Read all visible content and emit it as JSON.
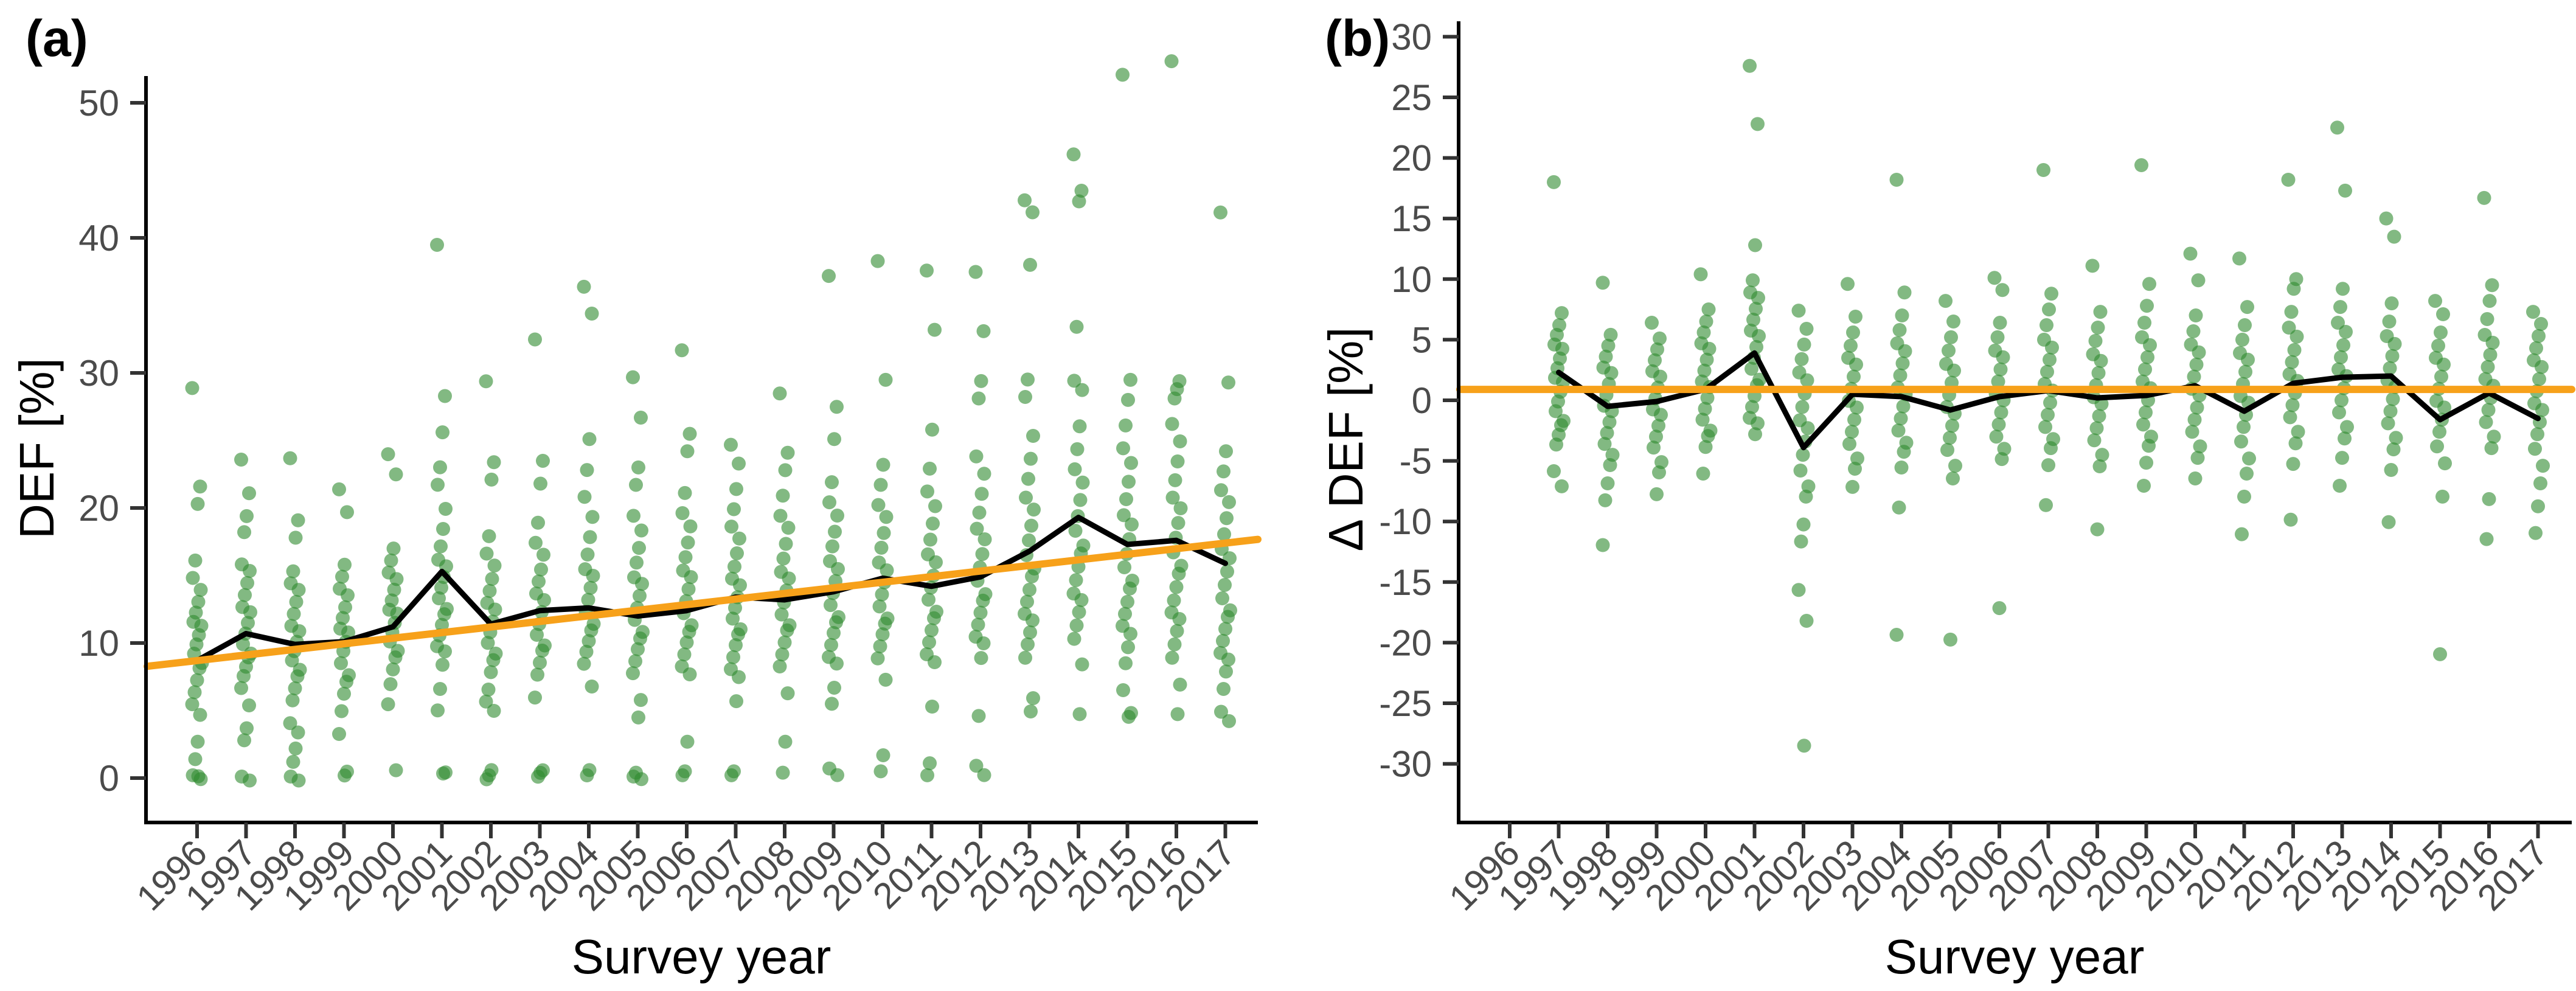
{
  "figure": {
    "description": "Two-panel scatter figure of deadwood/DEF share by survey year",
    "colors": {
      "dot": "#2f8a2f",
      "mean_line": "#000000",
      "trend_line": "#f7a11a",
      "axis": "#000000",
      "tick_text": "#4b4b4b"
    }
  },
  "chart_data": [
    {
      "type": "scatter",
      "panel_label": "(a)",
      "xlabel": "Survey year",
      "ylabel": "DEF [%]",
      "x_tick_labels": [
        "1996",
        "1997",
        "1998",
        "1999",
        "2000",
        "2001",
        "2002",
        "2003",
        "2004",
        "2005",
        "2006",
        "2007",
        "2008",
        "2009",
        "2010",
        "2011",
        "2012",
        "2013",
        "2014",
        "2015",
        "2016",
        "2017"
      ],
      "y_ticks": [
        0,
        10,
        20,
        30,
        40,
        50
      ],
      "ylim": [
        -3,
        54
      ],
      "legend": "none",
      "grid": "off",
      "years": [
        1996,
        1997,
        1998,
        1999,
        2000,
        2001,
        2002,
        2003,
        2004,
        2005,
        2006,
        2007,
        2008,
        2009,
        2010,
        2011,
        2012,
        2013,
        2014,
        2015,
        2016,
        2017
      ],
      "points_by_year": {
        "1996": [
          28.7,
          21.5,
          20.3,
          16.2,
          15.0,
          13.8,
          13.0,
          12.3,
          11.7,
          11.1,
          10.5,
          9.9,
          9.3,
          8.7,
          8.0,
          7.2,
          6.4,
          5.6,
          4.5,
          2.6,
          1.4,
          0.3,
          0.1,
          0.0
        ],
        "1997": [
          23.4,
          21.0,
          19.4,
          18.3,
          16.0,
          15.2,
          14.4,
          13.6,
          12.8,
          12.1,
          11.4,
          10.7,
          10.0,
          9.4,
          8.8,
          8.2,
          7.6,
          6.8,
          5.2,
          3.6,
          2.8,
          0.2,
          0.0
        ],
        "1998": [
          23.5,
          19.0,
          17.8,
          15.4,
          14.6,
          13.8,
          13.0,
          12.2,
          11.4,
          10.7,
          10.0,
          9.4,
          8.8,
          8.2,
          7.4,
          6.6,
          5.8,
          4.2,
          3.2,
          2.1,
          1.2,
          0.2,
          0.0
        ],
        "1999": [
          21.2,
          19.6,
          15.8,
          15.0,
          14.2,
          13.4,
          12.6,
          11.9,
          11.2,
          10.6,
          10.0,
          9.4,
          8.6,
          7.8,
          7.0,
          6.2,
          5.0,
          3.4,
          0.3,
          0.1
        ],
        "2000": [
          23.8,
          22.4,
          17.0,
          16.2,
          15.4,
          14.6,
          13.9,
          13.2,
          12.6,
          12.0,
          11.4,
          10.8,
          10.2,
          9.6,
          8.8,
          8.0,
          7.0,
          5.6,
          0.4
        ],
        "2001": [
          39.3,
          28.2,
          25.6,
          23.1,
          21.9,
          19.8,
          18.4,
          17.2,
          16.3,
          15.5,
          14.8,
          14.1,
          13.4,
          12.7,
          12.0,
          11.3,
          10.6,
          9.9,
          9.2,
          8.3,
          6.6,
          5.1,
          0.6,
          0.2
        ],
        "2002": [
          29.2,
          23.3,
          22.1,
          18.0,
          16.8,
          15.6,
          14.7,
          13.9,
          13.1,
          12.3,
          11.5,
          10.8,
          10.1,
          9.4,
          8.6,
          7.8,
          6.6,
          5.8,
          4.8,
          0.5,
          0.2,
          0.0
        ],
        "2003": [
          32.3,
          23.4,
          21.8,
          19.0,
          17.6,
          16.4,
          15.4,
          14.6,
          13.8,
          13.0,
          12.2,
          11.4,
          10.7,
          10.0,
          9.3,
          8.5,
          7.7,
          6.1,
          0.4,
          0.3,
          0.1
        ],
        "2004": [
          36.2,
          34.3,
          25.1,
          22.9,
          21.0,
          19.2,
          17.8,
          16.6,
          15.6,
          14.8,
          14.0,
          13.2,
          12.4,
          11.6,
          10.8,
          10.1,
          9.4,
          8.6,
          6.6,
          0.5,
          0.2
        ],
        "2005": [
          29.5,
          26.6,
          23.0,
          21.8,
          19.6,
          18.2,
          17.0,
          16.0,
          15.0,
          14.2,
          13.4,
          12.6,
          11.8,
          11.0,
          10.2,
          9.5,
          8.7,
          7.9,
          5.6,
          4.4,
          0.4,
          0.2,
          0.1
        ],
        "2006": [
          31.5,
          25.4,
          24.2,
          21.2,
          19.8,
          18.5,
          17.4,
          16.4,
          15.5,
          14.7,
          13.9,
          13.1,
          12.3,
          11.5,
          10.7,
          10.0,
          9.2,
          8.4,
          7.5,
          2.6,
          0.5,
          0.3
        ],
        "2007": [
          24.5,
          23.2,
          21.4,
          20.0,
          18.8,
          17.6,
          16.6,
          15.7,
          14.9,
          14.1,
          13.3,
          12.6,
          11.9,
          11.2,
          10.5,
          9.8,
          9.0,
          8.2,
          7.3,
          5.6,
          0.5,
          0.3
        ],
        "2008": [
          28.3,
          24.0,
          22.8,
          21.0,
          19.6,
          18.4,
          17.3,
          16.3,
          15.4,
          14.6,
          13.8,
          13.0,
          12.2,
          11.5,
          10.8,
          10.0,
          9.2,
          8.4,
          6.1,
          2.6,
          0.4
        ],
        "2009": [
          37.0,
          27.4,
          25.1,
          22.0,
          20.6,
          19.3,
          18.2,
          17.2,
          16.2,
          15.3,
          14.5,
          13.7,
          12.9,
          12.1,
          11.4,
          10.7,
          9.9,
          9.1,
          8.3,
          6.6,
          5.5,
          0.8,
          0.4
        ],
        "2010": [
          38.1,
          29.4,
          23.2,
          21.8,
          20.4,
          19.2,
          18.1,
          17.1,
          16.1,
          15.2,
          14.4,
          13.6,
          12.8,
          12.0,
          11.3,
          10.6,
          9.8,
          9.0,
          7.1,
          1.6,
          0.5
        ],
        "2011": [
          37.4,
          33.1,
          25.8,
          23.0,
          21.4,
          20.0,
          18.8,
          17.7,
          16.7,
          15.8,
          14.9,
          14.1,
          13.3,
          12.5,
          11.7,
          10.9,
          10.1,
          9.3,
          8.4,
          5.2,
          1.1,
          0.3
        ],
        "2012": [
          37.3,
          33.0,
          29.4,
          28.2,
          24.0,
          22.4,
          21.0,
          19.7,
          18.6,
          17.5,
          16.5,
          15.6,
          14.7,
          13.8,
          13.0,
          12.2,
          11.4,
          10.6,
          9.8,
          8.8,
          4.6,
          1.0,
          0.4
        ],
        "2013": [
          42.6,
          41.8,
          38.0,
          29.6,
          28.4,
          25.2,
          23.6,
          22.2,
          20.9,
          19.7,
          18.6,
          17.6,
          16.6,
          15.7,
          14.8,
          13.9,
          13.1,
          12.3,
          11.5,
          10.7,
          9.9,
          9.0,
          6.1,
          4.8
        ],
        "2014": [
          46.0,
          43.4,
          42.7,
          33.5,
          29.6,
          28.6,
          26.0,
          24.4,
          23.0,
          21.7,
          20.5,
          19.4,
          18.4,
          17.4,
          16.5,
          15.6,
          14.7,
          13.8,
          13.0,
          12.2,
          11.3,
          10.4,
          8.6,
          4.6
        ],
        "2015": [
          51.9,
          29.4,
          28.0,
          26.2,
          24.6,
          23.2,
          21.9,
          20.7,
          19.6,
          18.6,
          17.6,
          16.6,
          15.7,
          14.8,
          13.9,
          13.0,
          12.2,
          11.4,
          10.5,
          9.6,
          8.5,
          6.6,
          5.0,
          4.4
        ],
        "2016": [
          52.9,
          29.3,
          28.8,
          28.2,
          26.4,
          24.8,
          23.4,
          22.1,
          20.9,
          19.8,
          18.8,
          17.8,
          16.8,
          15.9,
          15.0,
          14.1,
          13.2,
          12.4,
          11.6,
          10.8,
          9.9,
          9.0,
          7.1,
          4.6
        ],
        "2017": [
          41.7,
          29.2,
          24.2,
          22.8,
          21.5,
          20.3,
          19.2,
          18.1,
          17.1,
          16.1,
          15.2,
          14.3,
          13.4,
          12.6,
          11.8,
          11.0,
          10.2,
          9.4,
          8.6,
          7.8,
          6.6,
          5.0,
          4.4
        ]
      },
      "mean_by_year": [
        8.7,
        10.7,
        9.9,
        10.1,
        11.2,
        15.3,
        11.4,
        12.4,
        12.6,
        12.0,
        12.4,
        13.4,
        13.2,
        13.8,
        14.8,
        14.2,
        14.9,
        16.8,
        19.3,
        17.3,
        17.6,
        15.9
      ],
      "trend": {
        "value_at_1996": 8.7,
        "value_at_2017": 17.4
      }
    },
    {
      "type": "scatter",
      "panel_label": "(b)",
      "xlabel": "Survey year",
      "ylabel": "Δ DEF [%]",
      "x_tick_labels": [
        "1996",
        "1997",
        "1998",
        "1999",
        "2000",
        "2001",
        "2002",
        "2003",
        "2004",
        "2005",
        "2006",
        "2007",
        "2008",
        "2009",
        "2010",
        "2011",
        "2012",
        "2013",
        "2014",
        "2015",
        "2016",
        "2017"
      ],
      "y_ticks": [
        -30,
        -25,
        -20,
        -15,
        -10,
        -5,
        0,
        5,
        10,
        15,
        20,
        25,
        30
      ],
      "ylim": [
        -33,
        32
      ],
      "legend": "none",
      "grid": "off",
      "years": [
        1996,
        1997,
        1998,
        1999,
        2000,
        2001,
        2002,
        2003,
        2004,
        2005,
        2006,
        2007,
        2008,
        2009,
        2010,
        2011,
        2012,
        2013,
        2014,
        2015,
        2016,
        2017
      ],
      "points_by_year": {
        "1997": [
          17.8,
          7.1,
          6.2,
          5.5,
          4.8,
          4.1,
          3.4,
          2.7,
          2.0,
          1.3,
          0.6,
          -0.1,
          -0.8,
          -1.5,
          -2.2,
          -2.9,
          -3.6,
          -5.7,
          -7.3
        ],
        "1998": [
          9.5,
          5.3,
          4.5,
          3.7,
          2.9,
          2.1,
          1.3,
          0.5,
          -0.3,
          -1.1,
          -1.9,
          -2.7,
          -3.5,
          -4.3,
          -5.5,
          -6.9,
          -8.2,
          -11.8
        ],
        "1999": [
          6.2,
          5.0,
          4.2,
          3.4,
          2.6,
          1.8,
          1.0,
          0.2,
          -0.6,
          -1.4,
          -2.2,
          -3.0,
          -3.8,
          -4.9,
          -6.1,
          -7.8
        ],
        "2000": [
          10.2,
          7.4,
          6.5,
          5.7,
          4.9,
          4.1,
          3.3,
          2.5,
          1.7,
          0.9,
          0.1,
          -0.7,
          -1.5,
          -2.3,
          -3.1,
          -3.9,
          -6.0
        ],
        "2001": [
          27.4,
          22.7,
          12.8,
          10.0,
          9.1,
          8.3,
          7.5,
          6.7,
          5.9,
          5.1,
          4.3,
          3.5,
          2.7,
          1.9,
          1.1,
          0.3,
          -0.5,
          -1.3,
          -2.1,
          -2.9
        ],
        "2002": [
          7.2,
          5.8,
          4.6,
          3.5,
          2.5,
          1.5,
          0.5,
          -0.5,
          -1.5,
          -2.5,
          -3.5,
          -4.5,
          -5.7,
          -6.9,
          -8.1,
          -10.3,
          -11.6,
          -15.5,
          -18.4,
          -28.6
        ],
        "2003": [
          9.4,
          6.8,
          5.6,
          4.6,
          3.7,
          2.8,
          1.9,
          1.0,
          0.1,
          -0.8,
          -1.7,
          -2.6,
          -3.5,
          -4.6,
          -5.8,
          -7.2
        ],
        "2004": [
          18.0,
          8.8,
          7.0,
          5.9,
          4.9,
          3.9,
          3.0,
          2.1,
          1.2,
          0.3,
          -0.6,
          -1.5,
          -2.4,
          -3.3,
          -4.4,
          -5.6,
          -8.8,
          -19.2
        ],
        "2005": [
          8.0,
          6.4,
          5.2,
          4.2,
          3.2,
          2.3,
          1.4,
          0.5,
          -0.4,
          -1.3,
          -2.2,
          -3.1,
          -4.0,
          -5.2,
          -6.6,
          -19.8
        ],
        "2006": [
          9.9,
          9.0,
          6.4,
          5.3,
          4.3,
          3.4,
          2.5,
          1.6,
          0.7,
          -0.2,
          -1.1,
          -2.0,
          -2.9,
          -3.8,
          -5.0,
          -17.2
        ],
        "2007": [
          18.8,
          8.7,
          7.5,
          6.3,
          5.2,
          4.2,
          3.3,
          2.4,
          1.5,
          0.6,
          -0.3,
          -1.2,
          -2.1,
          -3.0,
          -4.1,
          -5.4,
          -8.6
        ],
        "2008": [
          10.9,
          7.2,
          6.0,
          5.0,
          4.0,
          3.1,
          2.2,
          1.3,
          0.4,
          -0.5,
          -1.4,
          -2.3,
          -3.2,
          -4.3,
          -5.6,
          -10.7
        ],
        "2009": [
          19.2,
          9.5,
          7.8,
          6.5,
          5.4,
          4.4,
          3.5,
          2.6,
          1.7,
          0.8,
          -0.1,
          -1.0,
          -1.9,
          -2.8,
          -3.9,
          -5.2,
          -7.0
        ],
        "2010": [
          11.9,
          9.8,
          7.0,
          5.8,
          4.8,
          3.8,
          2.9,
          2.0,
          1.1,
          0.2,
          -0.7,
          -1.6,
          -2.5,
          -3.6,
          -4.9,
          -6.5
        ],
        "2011": [
          11.5,
          7.6,
          6.2,
          5.1,
          4.1,
          3.2,
          2.3,
          1.4,
          0.5,
          -0.4,
          -1.3,
          -2.2,
          -3.3,
          -4.6,
          -6.2,
          -8.0,
          -11.0
        ],
        "2012": [
          18.0,
          9.9,
          9.2,
          7.4,
          6.2,
          5.1,
          4.1,
          3.2,
          2.3,
          1.4,
          0.5,
          -0.4,
          -1.3,
          -2.4,
          -3.7,
          -5.3,
          -9.8
        ],
        "2013": [
          22.3,
          17.2,
          9.2,
          7.8,
          6.6,
          5.5,
          4.5,
          3.6,
          2.7,
          1.8,
          0.9,
          0.0,
          -0.9,
          -2.0,
          -3.3,
          -4.8,
          -7.0
        ],
        "2014": [
          14.8,
          13.4,
          8.0,
          6.6,
          5.5,
          4.5,
          3.6,
          2.7,
          1.8,
          0.9,
          0.0,
          -0.9,
          -1.8,
          -2.9,
          -4.2,
          -5.8,
          -10.0
        ],
        "2015": [
          8.0,
          7.0,
          5.6,
          4.6,
          3.7,
          2.8,
          1.9,
          1.0,
          0.1,
          -0.8,
          -1.7,
          -2.6,
          -3.7,
          -5.0,
          -8.1,
          -21.0
        ],
        "2016": [
          16.5,
          9.4,
          8.2,
          6.8,
          5.6,
          4.6,
          3.7,
          2.8,
          1.9,
          1.0,
          0.1,
          -0.8,
          -1.7,
          -2.8,
          -4.1,
          -8.2,
          -11.4
        ],
        "2017": [
          7.1,
          6.2,
          5.3,
          4.4,
          3.5,
          2.6,
          1.7,
          0.8,
          -0.1,
          -1.0,
          -1.9,
          -2.8,
          -3.9,
          -5.2,
          -7.0,
          -8.8,
          -10.9
        ]
      },
      "mean_by_year": [
        null,
        2.3,
        -0.5,
        -0.1,
        0.9,
        3.9,
        -3.9,
        0.5,
        0.3,
        -0.8,
        0.3,
        0.8,
        0.2,
        0.4,
        1.2,
        -0.9,
        1.4,
        1.9,
        2.0,
        -1.6,
        0.6,
        -1.5
      ],
      "trend": {
        "value_at_1996": 0.9,
        "value_at_2017": 0.9
      }
    }
  ]
}
